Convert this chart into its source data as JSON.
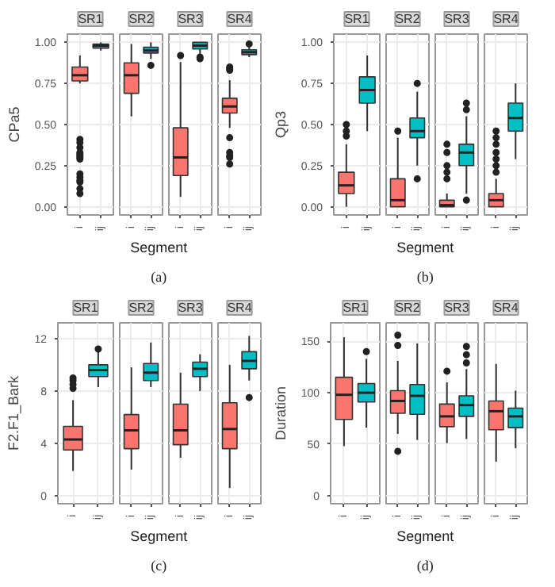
{
  "chart_data": [
    {
      "type": "box",
      "title": "SR1",
      "ylabel": "CPa5",
      "xlabel": "Segment",
      "annotations": [
        "(a)"
      ],
      "categories": [
        "i",
        "ij"
      ],
      "colors": [
        "#f8766d",
        "#00bfc4"
      ],
      "grid": true,
      "ylim": [
        -0.05,
        1.05
      ],
      "yticks": [
        {
          "value": 0,
          "label": "0.00"
        },
        {
          "value": 0.25,
          "label": "0.25"
        },
        {
          "value": 0.5,
          "label": "0.50"
        },
        {
          "value": 0.75,
          "label": "0.75"
        },
        {
          "value": 1,
          "label": "1.00"
        }
      ],
      "boxes": [
        {
          "low": 0.75,
          "q1": 0.765,
          "median": 0.8,
          "q3": 0.85,
          "high": 0.92,
          "outliers": [
            0.41,
            0.39,
            0.36,
            0.33,
            0.32,
            0.31,
            0.3,
            0.29,
            0.2,
            0.18,
            0.16,
            0.15,
            0.11,
            0.08
          ]
        },
        {
          "low": 0.95,
          "q1": 0.965,
          "median": 0.98,
          "q3": 0.99,
          "high": 1.0
        }
      ]
    },
    {
      "type": "box",
      "title": "SR2",
      "categories": [
        "i",
        "ij"
      ],
      "colors": [
        "#f8766d",
        "#00bfc4"
      ],
      "grid": true,
      "tick_labels": "x",
      "ylim": [
        -0.05,
        1.05
      ],
      "yticks": [
        0,
        0.25,
        0.5,
        0.75,
        1
      ],
      "boxes": [
        {
          "low": 0.55,
          "q1": 0.69,
          "median": 0.8,
          "q3": 0.875,
          "high": 0.99
        },
        {
          "low": 0.9,
          "q1": 0.935,
          "median": 0.95,
          "q3": 0.97,
          "high": 1.0,
          "outliers": [
            0.86
          ]
        }
      ]
    },
    {
      "type": "box",
      "title": "SR3",
      "categories": [
        "i",
        "ij"
      ],
      "colors": [
        "#f8766d",
        "#00bfc4"
      ],
      "grid": true,
      "tick_labels": "x",
      "ylim": [
        -0.05,
        1.05
      ],
      "yticks": [
        0,
        0.25,
        0.5,
        0.75,
        1
      ],
      "boxes": [
        {
          "low": 0.06,
          "q1": 0.19,
          "median": 0.3,
          "q3": 0.48,
          "high": 0.88,
          "outliers": [
            0.92
          ]
        },
        {
          "low": 0.93,
          "q1": 0.96,
          "median": 0.98,
          "q3": 1.0,
          "high": 1.0,
          "outliers": [
            0.91,
            0.9
          ]
        }
      ]
    },
    {
      "type": "box",
      "title": "SR4",
      "categories": [
        "i",
        "ij"
      ],
      "colors": [
        "#f8766d",
        "#00bfc4"
      ],
      "grid": true,
      "tick_labels": "x",
      "ylim": [
        -0.05,
        1.05
      ],
      "yticks": [
        0,
        0.25,
        0.5,
        0.75,
        1
      ],
      "boxes": [
        {
          "low": 0.48,
          "q1": 0.57,
          "median": 0.61,
          "q3": 0.66,
          "high": 0.77,
          "outliers": [
            0.85,
            0.84,
            0.83,
            0.42,
            0.33,
            0.31,
            0.3,
            0.26
          ]
        },
        {
          "low": 0.91,
          "q1": 0.925,
          "median": 0.94,
          "q3": 0.955,
          "high": 0.97,
          "outliers": [
            0.99
          ]
        }
      ]
    },
    {
      "type": "box",
      "title": "SR1",
      "ylabel": "Qp3",
      "xlabel": "Segment",
      "annotations": [
        "(b)"
      ],
      "categories": [
        "i",
        "ij"
      ],
      "colors": [
        "#f8766d",
        "#00bfc4"
      ],
      "grid": true,
      "ylim": [
        -0.05,
        1.05
      ],
      "yticks": [
        {
          "value": 0,
          "label": "0.00"
        },
        {
          "value": 0.25,
          "label": "0.25"
        },
        {
          "value": 0.5,
          "label": "0.50"
        },
        {
          "value": 0.75,
          "label": "0.75"
        },
        {
          "value": 1,
          "label": "1.00"
        }
      ],
      "boxes": [
        {
          "low": 0.0,
          "q1": 0.08,
          "median": 0.13,
          "q3": 0.21,
          "high": 0.38,
          "outliers": [
            0.43,
            0.46,
            0.5
          ]
        },
        {
          "low": 0.46,
          "q1": 0.63,
          "median": 0.71,
          "q3": 0.79,
          "high": 0.92
        }
      ]
    },
    {
      "type": "box",
      "title": "SR2",
      "categories": [
        "i",
        "ij"
      ],
      "colors": [
        "#f8766d",
        "#00bfc4"
      ],
      "grid": true,
      "tick_labels": "x",
      "ylim": [
        -0.05,
        1.05
      ],
      "yticks": [
        0,
        0.25,
        0.5,
        0.75,
        1
      ],
      "boxes": [
        {
          "low": 0.0,
          "q1": 0.0,
          "median": 0.04,
          "q3": 0.17,
          "high": 0.42,
          "outliers": [
            0.46
          ]
        },
        {
          "low": 0.25,
          "q1": 0.42,
          "median": 0.46,
          "q3": 0.54,
          "high": 0.7,
          "outliers": [
            0.75,
            0.17
          ]
        }
      ]
    },
    {
      "type": "box",
      "title": "SR3",
      "categories": [
        "i",
        "ij"
      ],
      "colors": [
        "#f8766d",
        "#00bfc4"
      ],
      "grid": true,
      "tick_labels": "x",
      "ylim": [
        -0.05,
        1.05
      ],
      "yticks": [
        0,
        0.25,
        0.5,
        0.75,
        1
      ],
      "boxes": [
        {
          "low": 0.0,
          "q1": 0.0,
          "median": 0.01,
          "q3": 0.04,
          "high": 0.08,
          "outliers": [
            0.17,
            0.21,
            0.25,
            0.33,
            0.38
          ]
        },
        {
          "low": 0.08,
          "q1": 0.25,
          "median": 0.33,
          "q3": 0.38,
          "high": 0.55,
          "outliers": [
            0.59,
            0.63,
            0.04
          ]
        }
      ]
    },
    {
      "type": "box",
      "title": "SR4",
      "categories": [
        "i",
        "ij"
      ],
      "colors": [
        "#f8766d",
        "#00bfc4"
      ],
      "grid": true,
      "tick_labels": "x",
      "ylim": [
        -0.05,
        1.05
      ],
      "yticks": [
        0,
        0.25,
        0.5,
        0.75,
        1
      ],
      "boxes": [
        {
          "low": 0.0,
          "q1": 0.0,
          "median": 0.04,
          "q3": 0.08,
          "high": 0.17,
          "outliers": [
            0.21,
            0.25,
            0.29,
            0.33,
            0.38,
            0.42,
            0.46
          ]
        },
        {
          "low": 0.29,
          "q1": 0.46,
          "median": 0.54,
          "q3": 0.63,
          "high": 0.75
        }
      ]
    },
    {
      "type": "box",
      "title": "SR1",
      "ylabel": "F2.F1_Bark",
      "xlabel": "Segment",
      "annotations": [
        "(c)"
      ],
      "categories": [
        "i",
        "ij"
      ],
      "colors": [
        "#f8766d",
        "#00bfc4"
      ],
      "grid": true,
      "ylim": [
        -0.6,
        13.2
      ],
      "yticks": [
        0,
        4,
        8,
        12
      ],
      "boxes": [
        {
          "low": 1.9,
          "q1": 3.5,
          "median": 4.3,
          "q3": 5.3,
          "high": 7.3,
          "outliers": [
            8.2,
            8.5,
            8.8,
            9.0
          ]
        },
        {
          "low": 8.3,
          "q1": 9.1,
          "median": 9.6,
          "q3": 10.0,
          "high": 11.0,
          "outliers": [
            11.2
          ]
        }
      ]
    },
    {
      "type": "box",
      "title": "SR2",
      "categories": [
        "i",
        "ij"
      ],
      "colors": [
        "#f8766d",
        "#00bfc4"
      ],
      "grid": true,
      "tick_labels": "x",
      "ylim": [
        -0.6,
        13.2
      ],
      "yticks": [
        0,
        4,
        8,
        12
      ],
      "boxes": [
        {
          "low": 2.0,
          "q1": 3.6,
          "median": 5.0,
          "q3": 6.2,
          "high": 9.8
        },
        {
          "low": 8.3,
          "q1": 8.8,
          "median": 9.4,
          "q3": 10.1,
          "high": 11.7
        }
      ]
    },
    {
      "type": "box",
      "title": "SR3",
      "categories": [
        "i",
        "ij"
      ],
      "colors": [
        "#f8766d",
        "#00bfc4"
      ],
      "grid": true,
      "tick_labels": "x",
      "ylim": [
        -0.6,
        13.2
      ],
      "yticks": [
        0,
        4,
        8,
        12
      ],
      "boxes": [
        {
          "low": 2.9,
          "q1": 3.9,
          "median": 5.0,
          "q3": 7.0,
          "high": 9.4
        },
        {
          "low": 8.0,
          "q1": 9.1,
          "median": 9.7,
          "q3": 10.2,
          "high": 10.8
        }
      ]
    },
    {
      "type": "box",
      "title": "SR4",
      "categories": [
        "i",
        "ij"
      ],
      "colors": [
        "#f8766d",
        "#00bfc4"
      ],
      "grid": true,
      "tick_labels": "x",
      "ylim": [
        -0.6,
        13.2
      ],
      "yticks": [
        0,
        4,
        8,
        12
      ],
      "boxes": [
        {
          "low": 0.6,
          "q1": 3.6,
          "median": 5.1,
          "q3": 7.1,
          "high": 10.0
        },
        {
          "low": 8.8,
          "q1": 9.7,
          "median": 10.3,
          "q3": 11.0,
          "high": 12.2,
          "outliers": [
            7.5
          ]
        }
      ]
    },
    {
      "type": "box",
      "title": "SR1",
      "ylabel": "Duration",
      "xlabel": "Segment",
      "annotations": [
        "(d)"
      ],
      "categories": [
        "i",
        "ij"
      ],
      "colors": [
        "#f8766d",
        "#00bfc4"
      ],
      "grid": true,
      "ylim": [
        -8,
        168
      ],
      "yticks": [
        0,
        50,
        100,
        150
      ],
      "boxes": [
        {
          "low": 48,
          "q1": 74,
          "median": 98,
          "q3": 115,
          "high": 154
        },
        {
          "low": 66,
          "q1": 91,
          "median": 100,
          "q3": 109,
          "high": 133,
          "outliers": [
            140
          ]
        }
      ]
    },
    {
      "type": "box",
      "title": "SR2",
      "categories": [
        "i",
        "ij"
      ],
      "colors": [
        "#f8766d",
        "#00bfc4"
      ],
      "grid": true,
      "tick_labels": "x",
      "ylim": [
        -8,
        168
      ],
      "yticks": [
        0,
        50,
        100,
        150
      ],
      "boxes": [
        {
          "low": 60,
          "q1": 80,
          "median": 92,
          "q3": 102,
          "high": 131,
          "outliers": [
            156,
            146,
            43
          ]
        },
        {
          "low": 54,
          "q1": 79,
          "median": 97,
          "q3": 108,
          "high": 148
        }
      ]
    },
    {
      "type": "box",
      "title": "SR3",
      "categories": [
        "i",
        "ij"
      ],
      "colors": [
        "#f8766d",
        "#00bfc4"
      ],
      "grid": true,
      "tick_labels": "x",
      "ylim": [
        -8,
        168
      ],
      "yticks": [
        0,
        50,
        100,
        150
      ],
      "boxes": [
        {
          "low": 51,
          "q1": 67,
          "median": 77,
          "q3": 89,
          "high": 110,
          "outliers": [
            121
          ]
        },
        {
          "low": 55,
          "q1": 77,
          "median": 88,
          "q3": 97,
          "high": 123,
          "outliers": [
            145,
            137,
            129
          ]
        }
      ]
    },
    {
      "type": "box",
      "title": "SR4",
      "categories": [
        "i",
        "ij"
      ],
      "colors": [
        "#f8766d",
        "#00bfc4"
      ],
      "grid": true,
      "tick_labels": "x",
      "ylim": [
        -8,
        168
      ],
      "yticks": [
        0,
        50,
        100,
        150
      ],
      "boxes": [
        {
          "low": 33,
          "q1": 64,
          "median": 82,
          "q3": 92,
          "high": 128
        },
        {
          "low": 46,
          "q1": 66,
          "median": 77,
          "q3": 85,
          "high": 102
        }
      ]
    }
  ]
}
